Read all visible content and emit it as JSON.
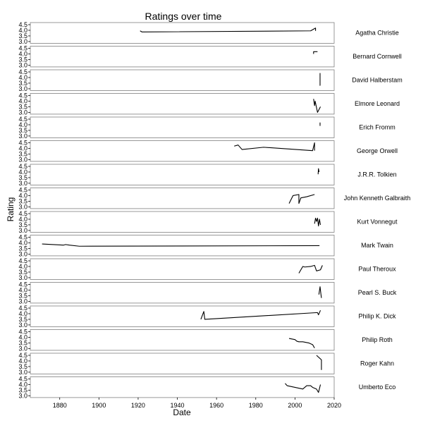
{
  "chart_data": {
    "type": "line",
    "title": "Ratings over time",
    "xlabel": "Date",
    "ylabel": "Rating",
    "xlim": [
      1865,
      2020
    ],
    "ylim": [
      3.0,
      4.5
    ],
    "x_ticks": [
      "1880",
      "1900",
      "1920",
      "1940",
      "1960",
      "1980",
      "2000",
      "2020"
    ],
    "y_ticks": [
      "3.0",
      "3.5",
      "4.0",
      "4.5"
    ],
    "facet_layout": "stacked rows, labels right",
    "series": [
      {
        "name": "Agatha Christie",
        "x": [
          1921,
          1922,
          2008,
          2010.5,
          2010.5
        ],
        "y": [
          3.95,
          3.85,
          3.95,
          4.2,
          3.95
        ]
      },
      {
        "name": "Bernard Cornwell",
        "x": [
          2009.5,
          2009.5,
          2011.5
        ],
        "y": [
          4.0,
          4.2,
          4.2
        ]
      },
      {
        "name": "David Halberstam",
        "x": [
          2012.6,
          2012.8,
          2012.8
        ],
        "y": [
          3.3,
          3.3,
          4.4
        ]
      },
      {
        "name": "Elmore Leonard",
        "x": [
          2009.5,
          2010,
          2010.3,
          2011.5,
          2013
        ],
        "y": [
          4.2,
          3.6,
          4.0,
          3.0,
          3.5
        ]
      },
      {
        "name": "Erich Fromm",
        "x": [
          2012.8,
          2012.8
        ],
        "y": [
          4.2,
          3.9
        ]
      },
      {
        "name": "George Orwell",
        "x": [
          1969,
          1971,
          1973,
          1984,
          2009,
          2010,
          2010
        ],
        "y": [
          4.2,
          4.3,
          3.9,
          4.1,
          3.8,
          4.5,
          3.8
        ]
      },
      {
        "name": "J.R.R. Tolkien",
        "x": [
          2011.8,
          2012,
          2012.3
        ],
        "y": [
          3.8,
          4.3,
          4.0
        ]
      },
      {
        "name": "John  Kenneth Galbraith",
        "x": [
          1997,
          1999,
          2002,
          2002,
          2003,
          2006,
          2010
        ],
        "y": [
          3.3,
          4.0,
          4.1,
          3.3,
          3.8,
          3.9,
          4.1
        ]
      },
      {
        "name": "Kurt Vonnegut",
        "x": [
          2010,
          2010.5,
          2011,
          2011.5,
          2012,
          2012.5,
          2013
        ],
        "y": [
          3.6,
          4.1,
          3.8,
          4.1,
          3.4,
          4.0,
          3.5
        ]
      },
      {
        "name": "Mark Twain",
        "x": [
          1871,
          1882,
          1883,
          1885,
          1890,
          2012.5
        ],
        "y": [
          3.9,
          3.8,
          3.85,
          3.8,
          3.7,
          3.75
        ]
      },
      {
        "name": "Paul Theroux",
        "x": [
          2002,
          2004,
          2005,
          2008,
          2010,
          2011,
          2013,
          2014
        ],
        "y": [
          3.4,
          4.0,
          3.95,
          4.0,
          4.1,
          3.6,
          3.7,
          4.1
        ]
      },
      {
        "name": "Pearl S. Buck",
        "x": [
          2012.2,
          2012.8,
          2013.2,
          2013.5
        ],
        "y": [
          3.6,
          4.3,
          3.7,
          3.3
        ]
      },
      {
        "name": "Philip K. Dick",
        "x": [
          1952,
          1953.5,
          1954,
          2011.5,
          2012,
          2013
        ],
        "y": [
          3.5,
          4.2,
          3.5,
          4.1,
          3.9,
          4.3
        ]
      },
      {
        "name": "Philip Roth",
        "x": [
          1997,
          2000,
          2001,
          2002,
          2004,
          2007,
          2009,
          2010
        ],
        "y": [
          3.9,
          3.8,
          3.65,
          3.6,
          3.6,
          3.5,
          3.35,
          3.05
        ]
      },
      {
        "name": "Roger Kahn",
        "x": [
          2011,
          2013.5,
          2013.5
        ],
        "y": [
          4.5,
          4.1,
          3.2
        ]
      },
      {
        "name": "Umberto Eco",
        "x": [
          1995,
          1996,
          2004,
          2006,
          2008,
          2009,
          2011,
          2012,
          2013
        ],
        "y": [
          4.1,
          3.9,
          3.6,
          3.9,
          3.9,
          3.75,
          3.6,
          3.3,
          4.0
        ]
      }
    ]
  }
}
